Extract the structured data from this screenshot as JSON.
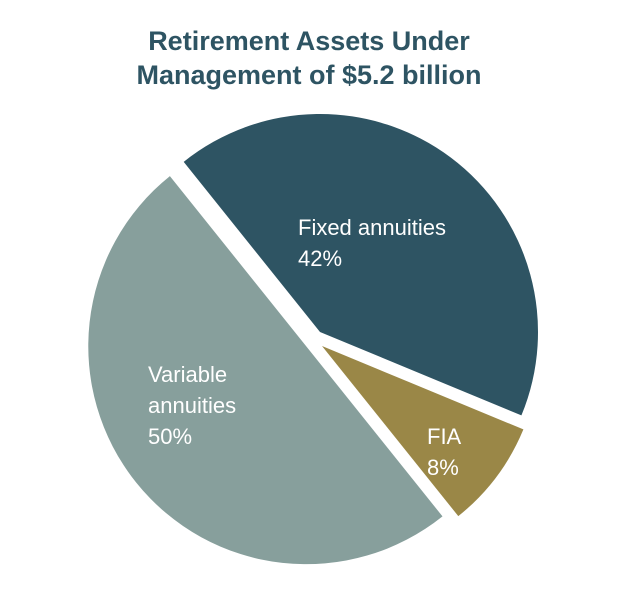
{
  "chart_data": {
    "type": "pie",
    "title": "Retirement Assets Under Management of $5.2 billion",
    "categories": [
      "Fixed annuities",
      "FIA",
      "Variable annuities"
    ],
    "values": [
      42,
      8,
      50
    ],
    "value_labels": [
      "42%",
      "8%",
      "50%"
    ],
    "colors": [
      "#2e5463",
      "#9a8747",
      "#879f9c"
    ]
  }
}
